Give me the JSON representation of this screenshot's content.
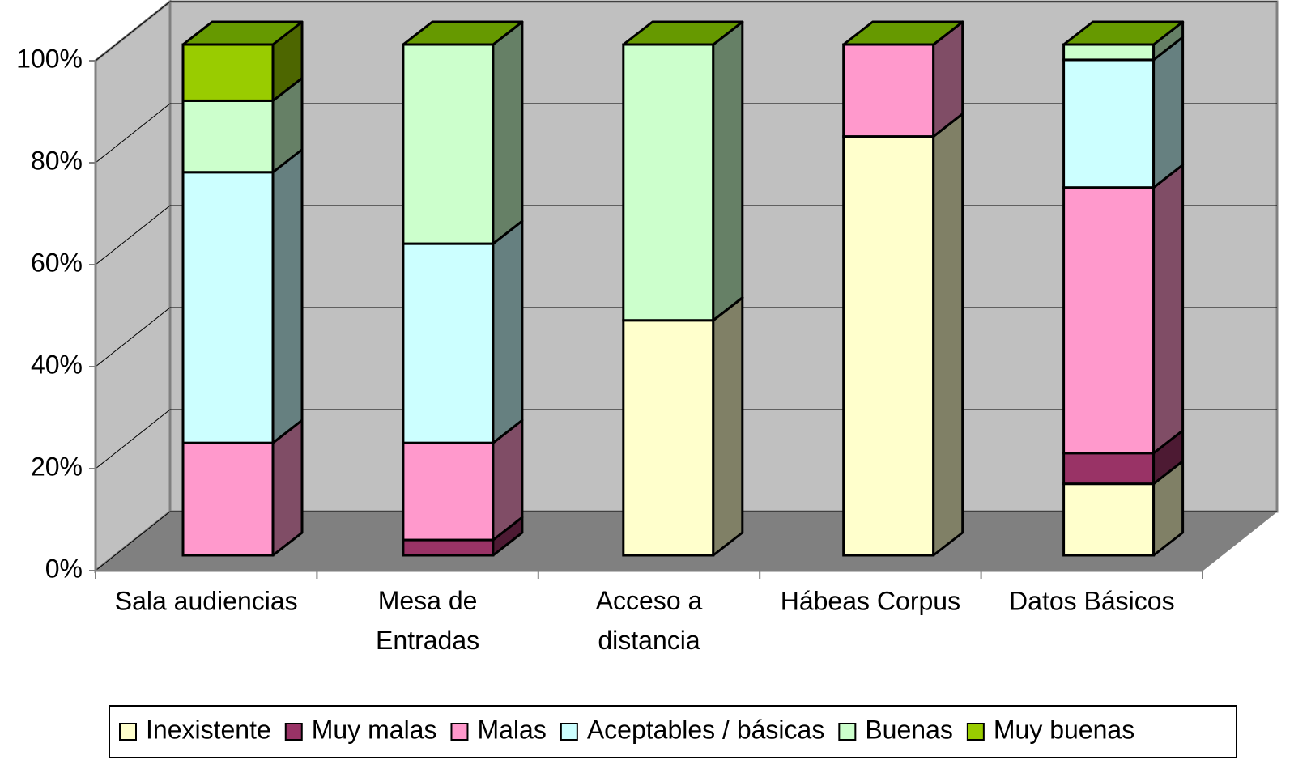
{
  "chart_data": {
    "type": "bar3d_stacked",
    "categories": [
      "Sala audiencias",
      "Mesa de Entradas",
      "Acceso a distancia",
      "Hábeas Corpus",
      "Datos Básicos"
    ],
    "series": [
      {
        "name": "Inexistente",
        "color": "#FFFFCC",
        "values": [
          0,
          0,
          46,
          82,
          14
        ]
      },
      {
        "name": "Muy malas",
        "color": "#993366",
        "values": [
          0,
          3,
          0,
          0,
          6
        ]
      },
      {
        "name": "Malas",
        "color": "#FF99CC",
        "values": [
          22,
          19,
          0,
          18,
          52
        ]
      },
      {
        "name": "Aceptables / básicas",
        "color": "#CCFFFF",
        "values": [
          53,
          39,
          0,
          0,
          25
        ]
      },
      {
        "name": "Buenas",
        "color": "#CCFFCC",
        "values": [
          14,
          39,
          54,
          0,
          3
        ]
      },
      {
        "name": "Muy buenas",
        "color": "#99CC00",
        "values": [
          11,
          0,
          0,
          0,
          0
        ]
      }
    ],
    "ylim": [
      0,
      100
    ],
    "yticks": [
      {
        "value": 0,
        "label": "0%"
      },
      {
        "value": 20,
        "label": "20%"
      },
      {
        "value": 40,
        "label": "40%"
      },
      {
        "value": 60,
        "label": "60%"
      },
      {
        "value": 80,
        "label": "80%"
      },
      {
        "value": 100,
        "label": "100%"
      }
    ],
    "grid": true,
    "legend": "bottom"
  }
}
